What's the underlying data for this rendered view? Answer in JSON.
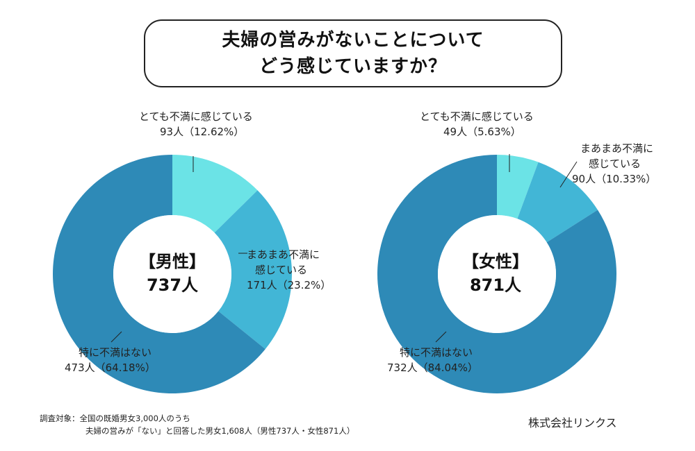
{
  "title": {
    "line1": "夫婦の営みがないことについて",
    "line2": "どう感じていますか？"
  },
  "colors": {
    "very_dissatisfied": "#6be3e6",
    "somewhat_dissatisfied": "#42b6d6",
    "not_dissatisfied": "#2e8ab7",
    "leader": "#222222"
  },
  "chart_data": [
    {
      "type": "pie",
      "variant": "donut",
      "center_label": {
        "line1": "【男性】",
        "line2": "737人"
      },
      "categories": [
        "とても不満に感じている",
        "まあまあ不満に感じている",
        "特に不満はない"
      ],
      "values": [
        12.62,
        23.2,
        64.18
      ],
      "counts": [
        93,
        171,
        473
      ],
      "labels": [
        {
          "line1": "とても不満に感じている",
          "line2": "93人（12.62%）"
        },
        {
          "line1": "まあまあ不満に",
          "line2": "感じている",
          "line3": "171人（23.2%）"
        },
        {
          "line1": "特に不満はない",
          "line2": "473人（64.18%）"
        }
      ]
    },
    {
      "type": "pie",
      "variant": "donut",
      "center_label": {
        "line1": "【女性】",
        "line2": "871人"
      },
      "categories": [
        "とても不満に感じている",
        "まあまあ不満に感じている",
        "特に不満はない"
      ],
      "values": [
        5.63,
        10.33,
        84.04
      ],
      "counts": [
        49,
        90,
        732
      ],
      "labels": [
        {
          "line1": "とても不満に感じている",
          "line2": "49人（5.63%）"
        },
        {
          "line1": "まあまあ不満に",
          "line2": "感じている",
          "line3": "90人（10.33%）"
        },
        {
          "line1": "特に不満はない",
          "line2": "732人（84.04%）"
        }
      ]
    }
  ],
  "footnote": {
    "label": "調査対象：",
    "line1": "全国の既婚男女3,000人のうち",
    "line2": "夫婦の営みが「ない」と回答した男女1,608人（男性737人・女性871人）"
  },
  "company": "株式会社リンクス"
}
